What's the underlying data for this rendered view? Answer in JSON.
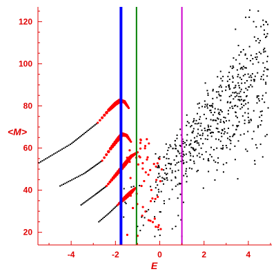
{
  "colors": {
    "axis": "#e00000",
    "labels": "#e00000",
    "points_black": "#000000",
    "points_red": "#ff0000",
    "line_blue": "#0000ff",
    "line_green": "#008000",
    "line_magenta": "#cc00cc"
  },
  "chart_data": {
    "type": "scatter",
    "title": "",
    "xlabel": "E",
    "ylabel": "<M>",
    "xlim": [
      -5.5,
      5.0
    ],
    "ylim": [
      14,
      127
    ],
    "xticks": [
      -4,
      -2,
      0,
      2,
      4
    ],
    "yticks": [
      20,
      40,
      60,
      80,
      100,
      120
    ],
    "grid": false,
    "legend": "none",
    "vlines": [
      {
        "x": -1.75,
        "color": "#0000ff",
        "width": "thick"
      },
      {
        "x": -1.05,
        "color": "#008000",
        "width": "thin"
      },
      {
        "x": 1.0,
        "color": "#cc00cc",
        "width": "thin"
      }
    ],
    "series": [
      {
        "color": "#000000",
        "branch": "chain",
        "x": [
          -5.45,
          -4.0,
          -2.8
        ],
        "y": [
          53,
          62,
          72
        ],
        "n": 40
      },
      {
        "color": "#ff0000",
        "branch": "curve",
        "x": [
          -2.8,
          -2.3,
          -2.0,
          -1.8,
          -1.6,
          -1.4
        ],
        "y": [
          72,
          78,
          81,
          82.5,
          82,
          79
        ],
        "n": 26
      },
      {
        "color": "#000000",
        "branch": "chain",
        "x": [
          -4.5,
          -3.4,
          -2.6
        ],
        "y": [
          42,
          48,
          54
        ],
        "n": 30
      },
      {
        "color": "#ff0000",
        "branch": "curve",
        "x": [
          -2.6,
          -2.2,
          -1.9,
          -1.7,
          -1.5,
          -1.3
        ],
        "y": [
          54,
          60,
          64,
          66.5,
          66,
          63
        ],
        "n": 22
      },
      {
        "color": "#000000",
        "branch": "chain",
        "x": [
          -3.55,
          -2.9,
          -2.4
        ],
        "y": [
          33,
          38,
          42
        ],
        "n": 22
      },
      {
        "color": "#ff0000",
        "branch": "curve",
        "x": [
          -2.4,
          -2.0,
          -1.6,
          -1.3,
          -1.0
        ],
        "y": [
          42,
          47,
          52,
          56,
          58
        ],
        "n": 22
      },
      {
        "color": "#000000",
        "branch": "chain",
        "x": [
          -2.75,
          -2.3,
          -1.9
        ],
        "y": [
          25,
          29,
          33
        ],
        "n": 16
      },
      {
        "color": "#ff0000",
        "branch": "curve",
        "x": [
          -1.9,
          -1.6,
          -1.3,
          -1.1
        ],
        "y": [
          33,
          36,
          39,
          41
        ],
        "n": 14
      },
      {
        "color": "#ff0000",
        "branch": "cloud",
        "x_range": [
          -1.5,
          0.1
        ],
        "y_range": [
          18,
          66
        ],
        "n": 55
      },
      {
        "color": "#000000",
        "branch": "cloud",
        "x_range": [
          -1.9,
          1.0
        ],
        "y_range": [
          18,
          44
        ],
        "n": 30
      },
      {
        "color": "#000000",
        "branch": "cloud",
        "x_range": [
          -0.2,
          4.9
        ],
        "y_range": [
          24,
          126
        ],
        "n": 560,
        "trend": {
          "slope": 10.5,
          "intercept": 47
        }
      }
    ]
  }
}
